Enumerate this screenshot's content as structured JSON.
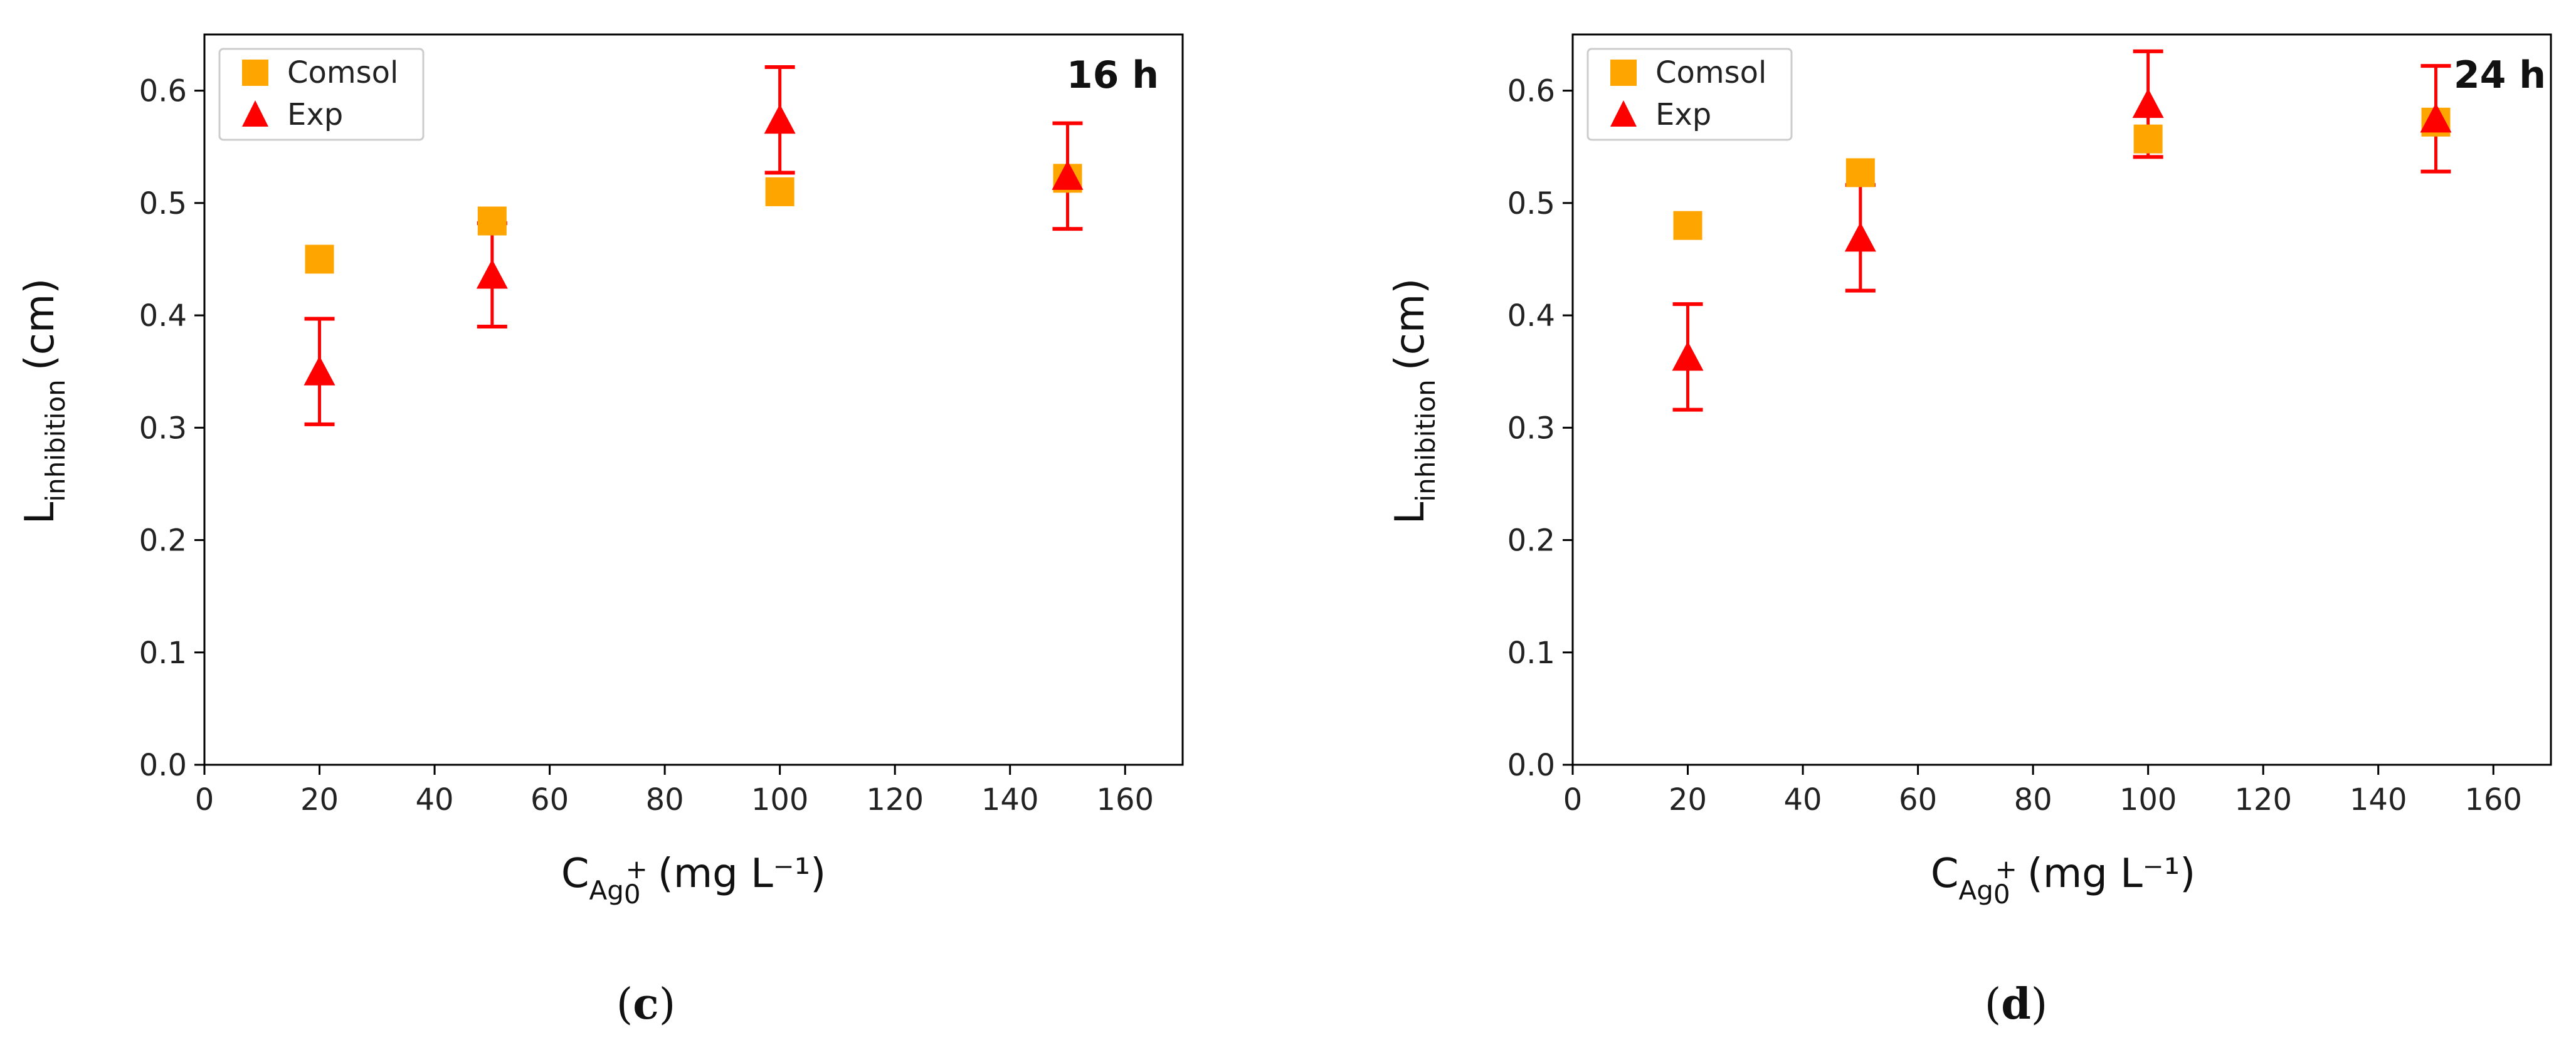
{
  "chart_data": [
    {
      "type": "scatter",
      "panel_label": "c",
      "time_label": "16 h",
      "xlabel_main": "C",
      "xlabel_sub": "Ag",
      "xlabel_sub2": "0",
      "xlabel_sup": "+",
      "xlabel_units": "(mg L⁻¹)",
      "ylabel_main": "L",
      "ylabel_sub": "inhibition",
      "ylabel_units": "(cm)",
      "xlim": [
        0,
        170
      ],
      "ylim": [
        0.0,
        0.65
      ],
      "xticks": [
        0,
        20,
        40,
        60,
        80,
        100,
        120,
        140,
        160
      ],
      "yticks": [
        0.0,
        0.1,
        0.2,
        0.3,
        0.4,
        0.5,
        0.6
      ],
      "ytick_labels": [
        "0.0",
        "0.1",
        "0.2",
        "0.3",
        "0.4",
        "0.5",
        "0.6"
      ],
      "legend_position": "top-left",
      "series": [
        {
          "name": "Comsol",
          "marker": "square",
          "color": "#FFA500",
          "x": [
            20,
            50,
            100,
            150
          ],
          "y": [
            0.45,
            0.484,
            0.51,
            0.522
          ]
        },
        {
          "name": "Exp",
          "marker": "triangle",
          "color": "#FF0000",
          "x": [
            20,
            50,
            100,
            150
          ],
          "y": [
            0.35,
            0.436,
            0.574,
            0.524
          ],
          "err": [
            0.047,
            0.046,
            0.047,
            0.047
          ]
        }
      ]
    },
    {
      "type": "scatter",
      "panel_label": "d",
      "time_label": "24 h",
      "xlabel_main": "C",
      "xlabel_sub": "Ag",
      "xlabel_sub2": "0",
      "xlabel_sup": "+",
      "xlabel_units": "(mg L⁻¹)",
      "ylabel_main": "L",
      "ylabel_sub": "inhibition",
      "ylabel_units": "(cm)",
      "xlim": [
        0,
        170
      ],
      "ylim": [
        0.0,
        0.65
      ],
      "xticks": [
        0,
        20,
        40,
        60,
        80,
        100,
        120,
        140,
        160
      ],
      "yticks": [
        0.0,
        0.1,
        0.2,
        0.3,
        0.4,
        0.5,
        0.6
      ],
      "ytick_labels": [
        "0.0",
        "0.1",
        "0.2",
        "0.3",
        "0.4",
        "0.5",
        "0.6"
      ],
      "legend_position": "top-left",
      "series": [
        {
          "name": "Comsol",
          "marker": "square",
          "color": "#FFA500",
          "x": [
            20,
            50,
            100,
            150
          ],
          "y": [
            0.48,
            0.527,
            0.557,
            0.572
          ]
        },
        {
          "name": "Exp",
          "marker": "triangle",
          "color": "#FF0000",
          "x": [
            20,
            50,
            100,
            150
          ],
          "y": [
            0.363,
            0.469,
            0.588,
            0.575
          ],
          "err": [
            0.047,
            0.047,
            0.047,
            0.047
          ]
        }
      ]
    }
  ]
}
